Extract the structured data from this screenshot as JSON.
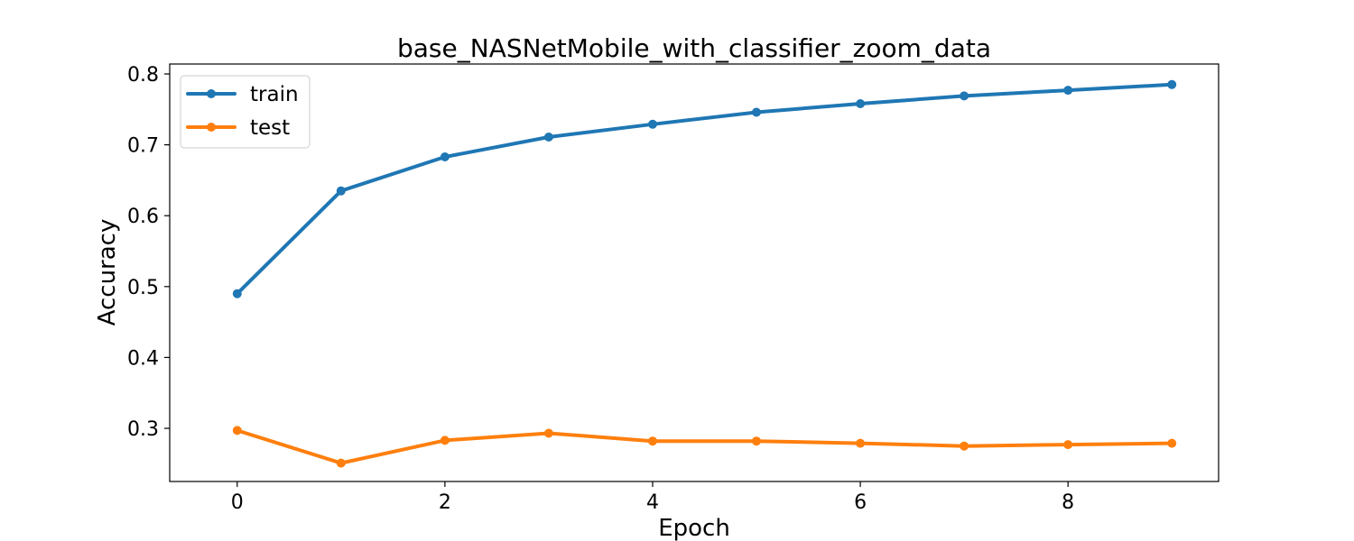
{
  "chart_data": {
    "type": "line",
    "title": "base_NASNetMobile_with_classifier_zoom_data",
    "xlabel": "Epoch",
    "ylabel": "Accuracy",
    "x": [
      0,
      1,
      2,
      3,
      4,
      5,
      6,
      7,
      8,
      9
    ],
    "xlim": [
      -0.65,
      9.45
    ],
    "ylim": [
      0.225,
      0.814
    ],
    "xticks": [
      0,
      2,
      4,
      6,
      8
    ],
    "yticks": [
      0.3,
      0.4,
      0.5,
      0.6,
      0.7,
      0.8
    ],
    "grid": false,
    "legend_position": "top-left",
    "series": [
      {
        "name": "train",
        "color": "#1f77b4",
        "values": [
          0.49,
          0.635,
          0.683,
          0.711,
          0.729,
          0.746,
          0.758,
          0.769,
          0.777,
          0.785
        ]
      },
      {
        "name": "test",
        "color": "#ff7f0e",
        "values": [
          0.297,
          0.251,
          0.283,
          0.293,
          0.282,
          0.282,
          0.279,
          0.275,
          0.277,
          0.279
        ]
      }
    ]
  }
}
